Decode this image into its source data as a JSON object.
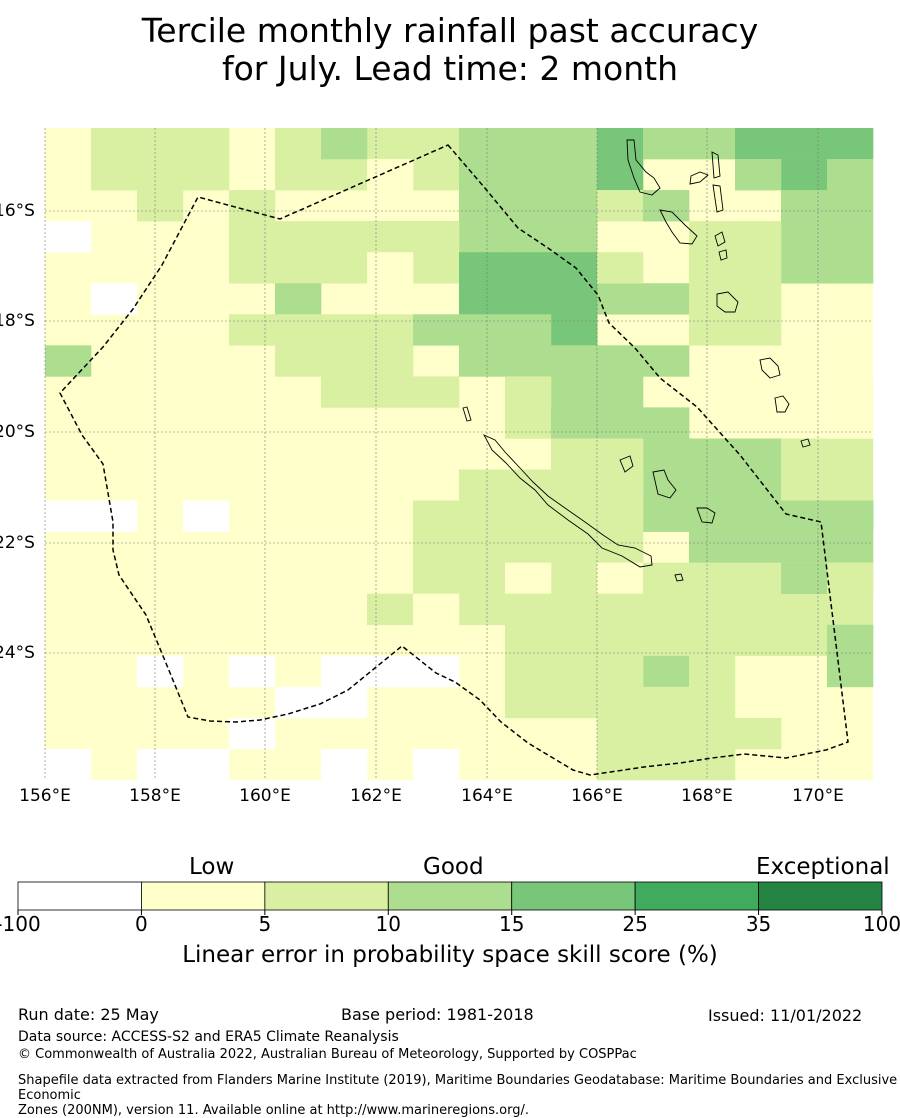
{
  "title": {
    "line1": "Tercile monthly rainfall past accuracy",
    "line2": "for July. Lead time: 2 month"
  },
  "map": {
    "lon_labels": [
      "156°E",
      "158°E",
      "160°E",
      "162°E",
      "164°E",
      "166°E",
      "168°E",
      "170°E"
    ],
    "lat_labels": [
      "16°S",
      "18°S",
      "20°S",
      "22°S",
      "24°S"
    ],
    "colors": {
      "none": "#ffffff",
      "low": "#ffffcc",
      "lightgreen": "#d9f0a3",
      "midgreen": "#addd8e",
      "green": "#78c679",
      "darkgreen": "#41ab5d",
      "deepgreen": "#238443"
    }
  },
  "colorbar": {
    "categories": [
      "Low",
      "Good",
      "Exceptional"
    ],
    "ticks": [
      "-100",
      "0",
      "5",
      "10",
      "15",
      "25",
      "35",
      "100"
    ],
    "colors": [
      "#ffffff",
      "#ffffcc",
      "#d9f0a3",
      "#addd8e",
      "#78c679",
      "#41ab5d",
      "#238443"
    ],
    "label": "Linear error in probability space skill score (%)"
  },
  "footer": {
    "run_date": "Run date: 25 May",
    "base_period": "Base period: 1981-2018",
    "issued": "Issued: 11/01/2022",
    "data_source": "Data source: ACCESS-S2 and ERA5 Climate Reanalysis",
    "copyright": "© Commonwealth of Australia 2022, Australian Bureau of Meteorology, Supported by COSPPac",
    "shapefile_line1": "Shapefile data extracted from Flanders Marine Institute (2019), Maritime Boundaries Geodatabase: Maritime Boundaries and Exclusive Economic",
    "shapefile_line2": "Zones (200NM), version 11. Available online at http://www.marineregions.org/."
  }
}
